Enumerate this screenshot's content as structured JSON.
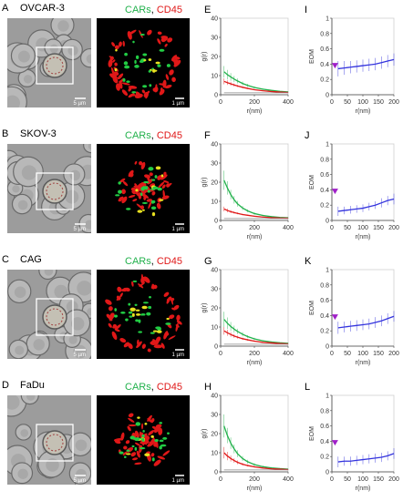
{
  "figure": {
    "rows": [
      {
        "row_letter": "A",
        "cell_name": "OVCAR-3",
        "g_letter": "E",
        "eom_letter": "I",
        "legend_green": "CARs",
        "legend_sep": ", ",
        "legend_red": "CD45",
        "scale_bf": "5 µm",
        "scale_conf": "1 µm"
      },
      {
        "row_letter": "B",
        "cell_name": "SKOV-3",
        "g_letter": "F",
        "eom_letter": "J",
        "legend_green": "CARs",
        "legend_sep": ", ",
        "legend_red": "CD45",
        "scale_bf": "5 µm",
        "scale_conf": "1 µm"
      },
      {
        "row_letter": "C",
        "cell_name": "CAG",
        "g_letter": "G",
        "eom_letter": "K",
        "legend_green": "CARs",
        "legend_sep": ", ",
        "legend_red": "CD45",
        "scale_bf": "5 µm",
        "scale_conf": "1 µm"
      },
      {
        "row_letter": "D",
        "cell_name": "FaDu",
        "g_letter": "H",
        "eom_letter": "L",
        "legend_green": "CARs",
        "legend_sep": ", ",
        "legend_red": "CD45",
        "scale_bf": "5 µm",
        "scale_conf": "1 µm"
      }
    ]
  },
  "colors": {
    "green": "#22b14c",
    "red": "#e01818",
    "blue": "#3333dd",
    "purple": "#a020c8",
    "gray": "#888888"
  },
  "chart_data": [
    {
      "type": "line",
      "panel": "E",
      "xlabel": "r(nm)",
      "ylabel": "g(r)",
      "xlim": [
        0,
        400
      ],
      "ylim": [
        0,
        40
      ],
      "xticks": [
        0,
        200,
        400
      ],
      "yticks": [
        0,
        10,
        20,
        30,
        40
      ],
      "x": [
        20,
        40,
        60,
        80,
        100,
        130,
        160,
        200,
        250,
        300,
        350,
        400
      ],
      "series": [
        {
          "color": "green",
          "values": [
            12,
            10.5,
            9.3,
            8.2,
            7.2,
            5.9,
            4.9,
            3.8,
            2.9,
            2.3,
            1.8,
            1.5
          ],
          "errors": [
            3,
            2.5,
            2,
            1.6,
            1.3,
            1,
            0.8,
            0.6,
            0.4,
            0.3,
            0.3,
            0.2
          ]
        },
        {
          "color": "red",
          "values": [
            7,
            6.3,
            5.7,
            5.1,
            4.6,
            3.9,
            3.3,
            2.6,
            2.1,
            1.7,
            1.4,
            1.2
          ],
          "errors": [
            1.5,
            1.2,
            1,
            0.8,
            0.6,
            0.5,
            0.4,
            0.3,
            0.2,
            0.2,
            0.2,
            0.1
          ]
        },
        {
          "color": "gray",
          "values": [
            1,
            1,
            1,
            1,
            1,
            1,
            1,
            1,
            1,
            1,
            1,
            1
          ]
        }
      ]
    },
    {
      "type": "line",
      "panel": "I",
      "xlabel": "r(nm)",
      "ylabel": "EOM",
      "xlim": [
        0,
        200
      ],
      "ylim": [
        0,
        1
      ],
      "xticks": [
        0,
        50,
        100,
        150,
        200
      ],
      "yticks": [
        0,
        0.2,
        0.4,
        0.6,
        0.8,
        1
      ],
      "x": [
        20,
        40,
        60,
        80,
        100,
        120,
        140,
        160,
        180,
        200
      ],
      "series": [
        {
          "color": "blue",
          "values": [
            0.34,
            0.35,
            0.36,
            0.37,
            0.38,
            0.39,
            0.4,
            0.42,
            0.44,
            0.46
          ],
          "errors": [
            0.1,
            0.09,
            0.08,
            0.08,
            0.08,
            0.08,
            0.08,
            0.08,
            0.08,
            0.08
          ]
        }
      ],
      "marker": {
        "x": 10,
        "y": 0.38,
        "color": "purple"
      }
    },
    {
      "type": "line",
      "panel": "F",
      "xlabel": "r(nm)",
      "ylabel": "g(r)",
      "xlim": [
        0,
        400
      ],
      "ylim": [
        0,
        40
      ],
      "xticks": [
        0,
        200,
        400
      ],
      "yticks": [
        0,
        10,
        20,
        30,
        40
      ],
      "x": [
        20,
        40,
        60,
        80,
        100,
        130,
        160,
        200,
        250,
        300,
        350,
        400
      ],
      "series": [
        {
          "color": "green",
          "values": [
            21,
            17,
            13.5,
            10.8,
            8.7,
            6.5,
            5,
            3.6,
            2.6,
            2,
            1.6,
            1.4
          ],
          "errors": [
            5,
            3.5,
            2.5,
            2,
            1.5,
            1.1,
            0.8,
            0.6,
            0.4,
            0.3,
            0.3,
            0.2
          ]
        },
        {
          "color": "red",
          "values": [
            6,
            5.2,
            4.6,
            4.1,
            3.7,
            3.1,
            2.7,
            2.2,
            1.8,
            1.5,
            1.3,
            1.2
          ],
          "errors": [
            1.2,
            1,
            0.8,
            0.6,
            0.5,
            0.4,
            0.3,
            0.3,
            0.2,
            0.2,
            0.1,
            0.1
          ]
        },
        {
          "color": "gray",
          "values": [
            1,
            1,
            1,
            1,
            1,
            1,
            1,
            1,
            1,
            1,
            1,
            1
          ]
        }
      ]
    },
    {
      "type": "line",
      "panel": "J",
      "xlabel": "r(nm)",
      "ylabel": "EOM",
      "xlim": [
        0,
        200
      ],
      "ylim": [
        0,
        1
      ],
      "xticks": [
        0,
        50,
        100,
        150,
        200
      ],
      "yticks": [
        0,
        0.2,
        0.4,
        0.6,
        0.8,
        1
      ],
      "x": [
        20,
        40,
        60,
        80,
        100,
        120,
        140,
        160,
        180,
        200
      ],
      "series": [
        {
          "color": "blue",
          "values": [
            0.12,
            0.13,
            0.14,
            0.15,
            0.16,
            0.18,
            0.2,
            0.23,
            0.26,
            0.28
          ],
          "errors": [
            0.06,
            0.05,
            0.05,
            0.05,
            0.05,
            0.05,
            0.05,
            0.06,
            0.06,
            0.07
          ]
        }
      ],
      "marker": {
        "x": 10,
        "y": 0.38,
        "color": "purple"
      }
    },
    {
      "type": "line",
      "panel": "G",
      "xlabel": "r(nm)",
      "ylabel": "g(r)",
      "xlim": [
        0,
        400
      ],
      "ylim": [
        0,
        40
      ],
      "xticks": [
        0,
        200,
        400
      ],
      "yticks": [
        0,
        10,
        20,
        30,
        40
      ],
      "x": [
        20,
        40,
        60,
        80,
        100,
        130,
        160,
        200,
        250,
        300,
        350,
        400
      ],
      "series": [
        {
          "color": "green",
          "values": [
            14,
            12,
            10.3,
            8.9,
            7.7,
            6.2,
            5,
            3.8,
            2.8,
            2.2,
            1.8,
            1.5
          ],
          "errors": [
            4,
            3,
            2.3,
            1.8,
            1.4,
            1.1,
            0.8,
            0.6,
            0.4,
            0.3,
            0.3,
            0.2
          ]
        },
        {
          "color": "red",
          "values": [
            8,
            7,
            6.1,
            5.3,
            4.7,
            3.9,
            3.3,
            2.6,
            2,
            1.7,
            1.4,
            1.2
          ],
          "errors": [
            2,
            1.6,
            1.2,
            1,
            0.8,
            0.6,
            0.5,
            0.4,
            0.3,
            0.2,
            0.2,
            0.1
          ]
        },
        {
          "color": "gray",
          "values": [
            1,
            1,
            1,
            1,
            1,
            1,
            1,
            1,
            1,
            1,
            1,
            1
          ]
        }
      ]
    },
    {
      "type": "line",
      "panel": "K",
      "xlabel": "r(nm)",
      "ylabel": "EOM",
      "xlim": [
        0,
        200
      ],
      "ylim": [
        0,
        1
      ],
      "xticks": [
        0,
        50,
        100,
        150,
        200
      ],
      "yticks": [
        0,
        0.2,
        0.4,
        0.6,
        0.8,
        1
      ],
      "x": [
        20,
        40,
        60,
        80,
        100,
        120,
        140,
        160,
        180,
        200
      ],
      "series": [
        {
          "color": "blue",
          "values": [
            0.24,
            0.25,
            0.26,
            0.27,
            0.28,
            0.29,
            0.31,
            0.33,
            0.36,
            0.39
          ],
          "errors": [
            0.08,
            0.07,
            0.07,
            0.07,
            0.07,
            0.07,
            0.07,
            0.07,
            0.07,
            0.07
          ]
        }
      ],
      "marker": {
        "x": 10,
        "y": 0.38,
        "color": "purple"
      }
    },
    {
      "type": "line",
      "panel": "H",
      "xlabel": "r(nm)",
      "ylabel": "g(r)",
      "xlim": [
        0,
        400
      ],
      "ylim": [
        0,
        40
      ],
      "xticks": [
        0,
        200,
        400
      ],
      "yticks": [
        0,
        10,
        20,
        30,
        40
      ],
      "x": [
        20,
        40,
        60,
        80,
        100,
        130,
        160,
        200,
        250,
        300,
        350,
        400
      ],
      "series": [
        {
          "color": "green",
          "values": [
            24,
            19,
            15,
            12,
            9.5,
            7,
            5.3,
            3.8,
            2.7,
            2.1,
            1.7,
            1.4
          ],
          "errors": [
            6,
            4,
            3,
            2.3,
            1.8,
            1.3,
            1,
            0.7,
            0.5,
            0.4,
            0.3,
            0.2
          ]
        },
        {
          "color": "red",
          "values": [
            10,
            8.3,
            7,
            5.9,
            5,
            4,
            3.3,
            2.6,
            2,
            1.6,
            1.4,
            1.2
          ],
          "errors": [
            3,
            2.2,
            1.6,
            1.2,
            1,
            0.7,
            0.5,
            0.4,
            0.3,
            0.2,
            0.2,
            0.1
          ]
        },
        {
          "color": "gray",
          "values": [
            1,
            1,
            1,
            1,
            1,
            1,
            1,
            1,
            1,
            1,
            1,
            1
          ]
        }
      ]
    },
    {
      "type": "line",
      "panel": "L",
      "xlabel": "r(nm)",
      "ylabel": "EOM",
      "xlim": [
        0,
        200
      ],
      "ylim": [
        0,
        1
      ],
      "xticks": [
        0,
        50,
        100,
        150,
        200
      ],
      "yticks": [
        0,
        0.2,
        0.4,
        0.6,
        0.8,
        1
      ],
      "x": [
        20,
        40,
        60,
        80,
        100,
        120,
        140,
        160,
        180,
        200
      ],
      "series": [
        {
          "color": "blue",
          "values": [
            0.13,
            0.14,
            0.14,
            0.15,
            0.16,
            0.17,
            0.18,
            0.19,
            0.21,
            0.24
          ],
          "errors": [
            0.07,
            0.06,
            0.06,
            0.06,
            0.06,
            0.06,
            0.06,
            0.06,
            0.06,
            0.07
          ]
        }
      ],
      "marker": {
        "x": 10,
        "y": 0.38,
        "color": "purple"
      }
    }
  ]
}
